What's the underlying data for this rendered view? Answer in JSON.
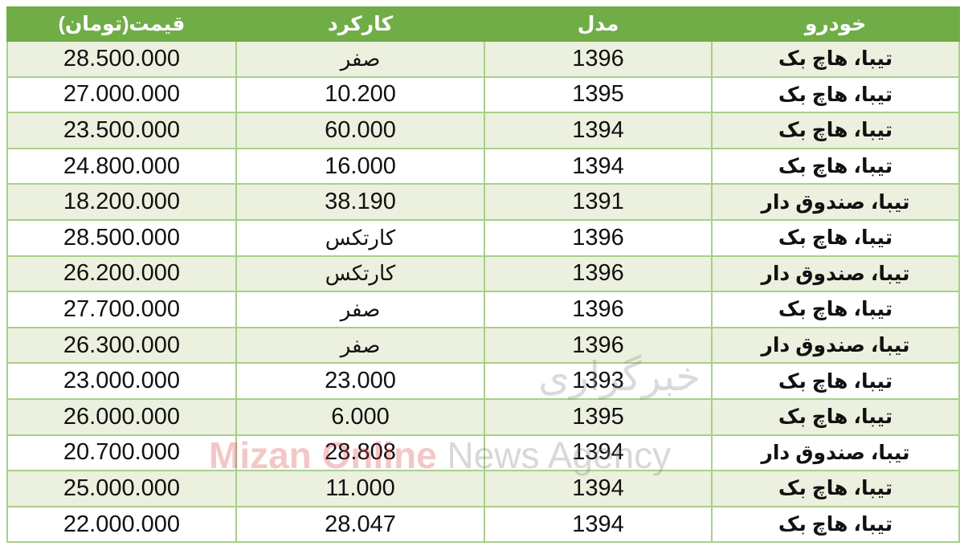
{
  "headers": {
    "price": "قیمت(تومان)",
    "mileage": "کارکرد",
    "model": "مدل",
    "car": "خودرو"
  },
  "rows": [
    {
      "price": "28.500.000",
      "mileage": "صفر",
      "model": "1396",
      "car": "تیبا، هاچ بک"
    },
    {
      "price": "27.000.000",
      "mileage": "10.200",
      "model": "1395",
      "car": "تیبا، هاچ بک"
    },
    {
      "price": "23.500.000",
      "mileage": "60.000",
      "model": "1394",
      "car": "تیبا، هاچ بک"
    },
    {
      "price": "24.800.000",
      "mileage": "16.000",
      "model": "1394",
      "car": "تیبا، هاچ بک"
    },
    {
      "price": "18.200.000",
      "mileage": "38.190",
      "model": "1391",
      "car": "تیبا، صندوق دار"
    },
    {
      "price": "28.500.000",
      "mileage": "کارتکس",
      "model": "1396",
      "car": "تیبا، هاچ بک"
    },
    {
      "price": "26.200.000",
      "mileage": "کارتکس",
      "model": "1396",
      "car": "تیبا، صندوق دار"
    },
    {
      "price": "27.700.000",
      "mileage": "صفر",
      "model": "1396",
      "car": "تیبا، هاچ بک"
    },
    {
      "price": "26.300.000",
      "mileage": "صفر",
      "model": "1396",
      "car": "تیبا، صندوق دار"
    },
    {
      "price": "23.000.000",
      "mileage": "23.000",
      "model": "1393",
      "car": "تیبا، هاچ بک"
    },
    {
      "price": "26.000.000",
      "mileage": "6.000",
      "model": "1395",
      "car": "تیبا، هاچ بک"
    },
    {
      "price": "20.700.000",
      "mileage": "28.808",
      "model": "1394",
      "car": "تیبا، صندوق دار"
    },
    {
      "price": "25.000.000",
      "mileage": "11.000",
      "model": "1394",
      "car": "تیبا، هاچ بک"
    },
    {
      "price": "22.000.000",
      "mileage": "28.047",
      "model": "1394",
      "car": "تیبا، هاچ بک"
    }
  ],
  "watermark": {
    "brand": "Mizan Online",
    "suffix": "News Agency",
    "persian": "خبرگزاری"
  },
  "colors": {
    "header": "#70ad47",
    "row_alt": "#ebf1de",
    "border": "#a9cf8a"
  }
}
